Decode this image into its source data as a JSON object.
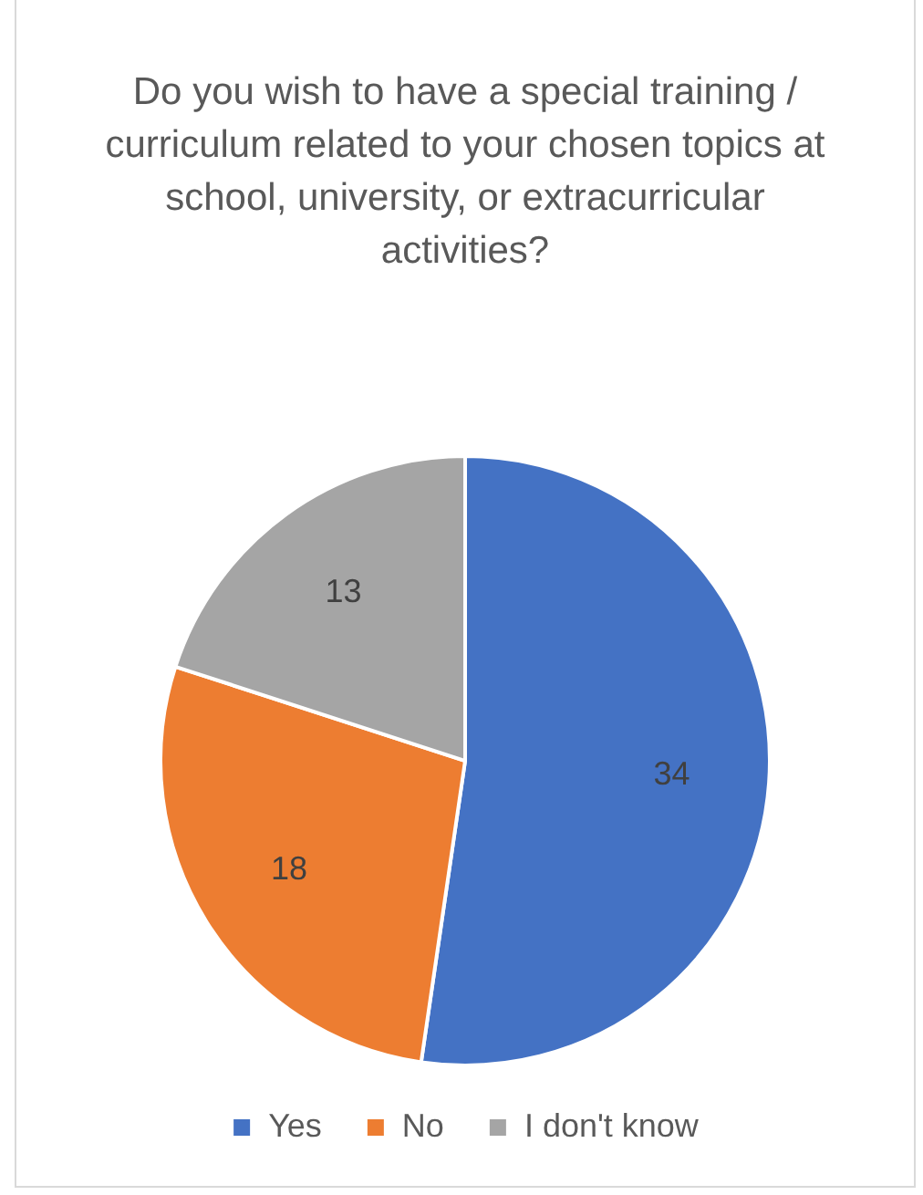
{
  "chart_data": {
    "type": "pie",
    "title": "Do you wish to have a special training / curriculum related to your chosen topics at school, university, or extracurricular activities?",
    "categories": [
      "Yes",
      "No",
      "I don't know"
    ],
    "values": [
      34,
      18,
      13
    ],
    "colors": [
      "#4472c4",
      "#ed7d31",
      "#a5a5a5"
    ],
    "data_labels": true,
    "legend": "bottom"
  }
}
